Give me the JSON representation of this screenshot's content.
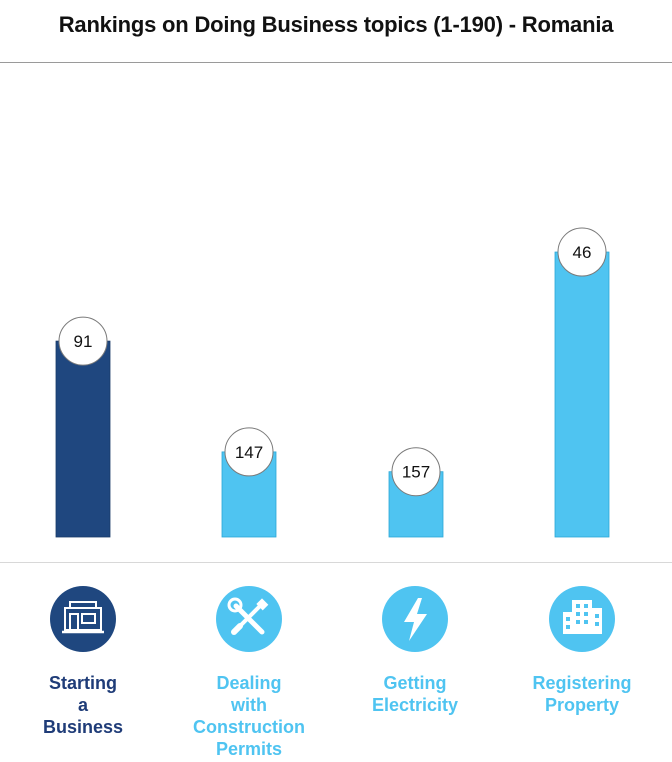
{
  "title": "Rankings on Doing Business topics (1-190) - Romania",
  "colors": {
    "dark": "#1f477f",
    "light": "#4fc4f1",
    "dark_text": "#1f3c78",
    "light_text": "#4fc4f1"
  },
  "chart_data": {
    "type": "bar",
    "title": "Rankings on Doing Business topics (1-190) - Romania",
    "categories": [
      "Starting a Business",
      "Dealing with Construction Permits",
      "Getting Electricity",
      "Registering Property"
    ],
    "values": [
      91,
      147,
      157,
      46
    ],
    "ylim": [
      1,
      190
    ],
    "y_inverted": true,
    "grid": false,
    "legend": "none",
    "bar_colors": [
      "#1f477f",
      "#4fc4f1",
      "#4fc4f1",
      "#4fc4f1"
    ],
    "data_labels": [
      "91",
      "147",
      "157",
      "46"
    ]
  },
  "categories": [
    {
      "lines": [
        "Starting",
        "a",
        "Business"
      ],
      "icon": "storefront-icon",
      "tone": "dark"
    },
    {
      "lines": [
        "Dealing",
        "with",
        "Construction",
        "Permits"
      ],
      "icon": "tools-icon",
      "tone": "light"
    },
    {
      "lines": [
        "Getting",
        "Electricity"
      ],
      "icon": "lightning-icon",
      "tone": "light"
    },
    {
      "lines": [
        "Registering",
        "Property"
      ],
      "icon": "buildings-icon",
      "tone": "light"
    }
  ]
}
